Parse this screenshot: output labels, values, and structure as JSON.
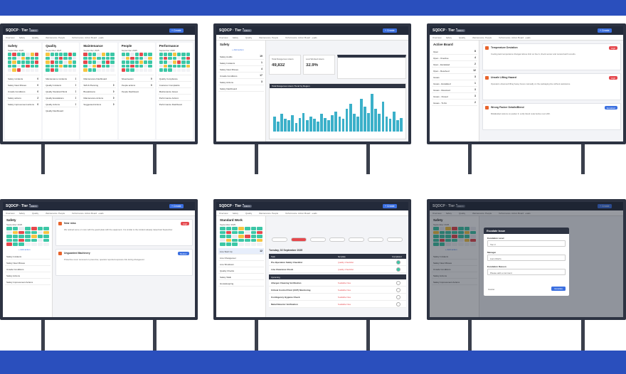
{
  "app": {
    "title": "SQDCP · Tier 2",
    "badge": "Admin",
    "button": "+ Create"
  },
  "nav": [
    "Overview",
    "Safety",
    "Quality",
    "Maintenance",
    "People",
    "Performance",
    "Action Board",
    "Leads"
  ],
  "screens": [
    {
      "columns": [
        {
          "title": "Safety",
          "month": "September 2025",
          "items": [
            {
              "label": "Safety incidents",
              "count": 0
            },
            {
              "label": "Safety Near Misses",
              "count": 0
            },
            {
              "label": "Unsafe Conditions",
              "count": 0
            },
            {
              "label": "Safety actions",
              "count": 2
            },
            {
              "label": "Safety improvement actions",
              "count": 0
            }
          ]
        },
        {
          "title": "Quality",
          "month": "September 2025",
          "items": [
            {
              "label": "Maintenance incidents",
              "count": 1
            },
            {
              "label": "Quality Incidents",
              "count": 0
            },
            {
              "label": "Quality Standard Work",
              "count": 0
            },
            {
              "label": "Quality Escalations",
              "count": 2
            },
            {
              "label": "Quality Actions",
              "count": 0
            },
            {
              "label": "Quality Dashboard"
            }
          ]
        },
        {
          "title": "Maintenance",
          "month": "September 2025",
          "items": [
            {
              "label": "Maintenance Dashboard"
            },
            {
              "label": "SMI & Planning",
              "count": 0
            },
            {
              "label": "Breakdowns",
              "count": 0
            },
            {
              "label": "Maintenance Actions",
              "count": 0
            },
            {
              "label": "Suggested Actions",
              "count": 0
            }
          ]
        },
        {
          "title": "People",
          "month": "September 2025",
          "items": [
            {
              "label": "Absenteeism",
              "count": 0
            },
            {
              "label": "People actions",
              "count": 0
            },
            {
              "label": "People Dashboard"
            }
          ]
        },
        {
          "title": "Performance",
          "month": "September 2025",
          "items": [
            {
              "label": "Quality Compliance"
            },
            {
              "label": "Customer Complaints"
            },
            {
              "label": "Maintenance Issues"
            },
            {
              "label": "Performance Actions"
            },
            {
              "label": "Performance Dashboard"
            }
          ]
        }
      ]
    },
    {
      "sidebar": {
        "title": "Safety",
        "link": "+ Add action",
        "items": [
          {
            "label": "Safety Audits",
            "count": 19
          },
          {
            "label": "Safety Incidents",
            "count": 1
          },
          {
            "label": "Safety Near Misses",
            "count": 4
          },
          {
            "label": "Unsafe Conditions",
            "count": 17
          },
          {
            "label": "Safety Actions",
            "count": 3
          },
          {
            "label": "Safety Dashboard"
          }
        ]
      },
      "stats": [
        {
          "label": "Total Dangerous Hours",
          "value": "49,832"
        },
        {
          "label": "Lost Worked Hours",
          "value": "32.9%"
        }
      ],
      "chart_title": "Total Dangerous Hours Trend by Region",
      "bars": [
        12,
        8,
        14,
        10,
        9,
        13,
        7,
        11,
        15,
        9,
        12,
        10,
        8,
        14,
        11,
        9,
        13,
        16,
        12,
        10,
        18,
        22,
        14,
        12,
        26,
        20,
        15,
        30,
        18,
        14,
        24,
        12,
        10,
        16,
        9,
        11
      ]
    },
    {
      "sidebar": {
        "title": "Active Board",
        "items": [
          {
            "label": "Open",
            "count": 8
          },
          {
            "label": "Open - Overdue",
            "count": 4
          },
          {
            "label": "Open - Escalated",
            "count": 2
          },
          {
            "label": "Open - Resolved",
            "count": 12
          },
          {
            "label": "Issues",
            "count": 3
          },
          {
            "label": "Issues - Escalated",
            "count": 1
          },
          {
            "label": "Issues - Resolved",
            "count": 3
          },
          {
            "label": "Issues - Closed",
            "count": 3
          },
          {
            "label": "Issues - To Do",
            "count": 2
          }
        ]
      },
      "cards": [
        {
          "title": "Temperature Deviation",
          "text": "Cooling tank temperature changed above limit on line A; check sensor and review batch records.",
          "tag": "High"
        },
        {
          "title": "Unsafe Lifting Hazard",
          "text": "Operators observed lifting heavy boxes manually on the packaging line without assistance.",
          "tag": "High"
        },
        {
          "title": "Wrong Packer Details/Blend",
          "text": "Mislabelled cartons on packer 3; verify blend code before next shift.",
          "tag": "Escalated"
        }
      ]
    },
    {
      "sidebar": {
        "title": "Safety",
        "month": "September 2025",
        "link": "+ Add action",
        "items": [
          {
            "label": "Safety Incidents"
          },
          {
            "label": "Safety Near Misses"
          },
          {
            "label": "Unsafe Conditions"
          },
          {
            "label": "Safety Actions"
          },
          {
            "label": "Safety Improvement Actions"
          }
        ]
      },
      "cards": [
        {
          "title": "Near miss",
          "text": "We noticed some or more with the guard plate with the equipment. It is similar to the incident already raised last September.",
          "tag": "High"
        },
        {
          "title": "Unguarded Machinery",
          "text": "Protective cover removed on press line; operator reported exposure risk during changeover.",
          "tag": "Medium"
        }
      ]
    },
    {
      "sidebar": {
        "title": "Standard Work",
        "month": "September 2025",
        "items": [
          {
            "label": "Line Start Up",
            "count": 12
          },
          {
            "label": "Line Changeover"
          },
          {
            "label": "Line Shutdown"
          },
          {
            "label": "Quality Checks"
          },
          {
            "label": "Safety Walk"
          },
          {
            "label": "Housekeeping"
          }
        ]
      },
      "date": "Tuesday, 02 September 2025",
      "table": {
        "headers": [
          "Task",
          "Template",
          "Completed"
        ],
        "rows": [
          [
            "Pre-Operation Safety Checklist",
            "Quality Checklist"
          ],
          [
            "Line Clearance Check",
            "Quality Checklist"
          ]
        ],
        "section": "Upcoming",
        "upcoming": [
          [
            "Allergen Cleaning Verification",
            "Available Now"
          ],
          [
            "Critical Control Point (CCP) Monitoring",
            "Available Now"
          ],
          [
            "Contingency Hygiene Check",
            "Available Now"
          ],
          [
            "Metal Detector Verification",
            "Available Now"
          ]
        ]
      }
    },
    {
      "sidebar": {
        "title": "Safety",
        "month": "September 2025",
        "link": "+ Add action",
        "items": [
          {
            "label": "Safety Incidents"
          },
          {
            "label": "Safety Near Misses"
          },
          {
            "label": "Unsafe Conditions"
          },
          {
            "label": "Safety Actions"
          },
          {
            "label": "Safety Improvement Actions"
          }
        ]
      },
      "modal": {
        "title": "Escalate Issue",
        "fields": [
          {
            "label": "Escalation Level",
            "value": "Tier 3"
          },
          {
            "label": "Manager",
            "value": "Liam Morris"
          },
          {
            "label": "Escalation Reason",
            "value": "Please add a comment"
          }
        ],
        "buttons": [
          "Cancel",
          "Escalate"
        ]
      }
    }
  ]
}
